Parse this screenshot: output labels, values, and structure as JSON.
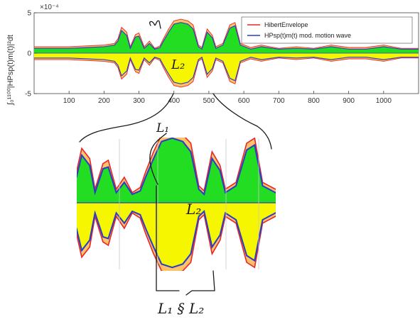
{
  "chart_data": {
    "type": "area",
    "title": "",
    "xlabel": "",
    "ylabel": "∫₀¹¹⁰⁰|HPsp(t)m(t)|²dt",
    "y_exponent": "×10⁻⁴",
    "xlim": [
      0,
      1100
    ],
    "ylim": [
      -5,
      5
    ],
    "x_ticks": [
      100,
      200,
      300,
      400,
      500,
      600,
      700,
      800,
      900,
      1000
    ],
    "y_ticks": [
      -5,
      0,
      5
    ],
    "grid": false,
    "legend": {
      "position": "top-right",
      "entries": [
        {
          "label": "HibertEnvelope",
          "color": "#e8262a"
        },
        {
          "label": "HPsp(t)m(t) mod. motion wave",
          "color": "#2a3fc6"
        }
      ]
    },
    "colors": {
      "upper_fill": "#22dd22",
      "lower_fill": "#f6f600",
      "envelope": "#e8262a",
      "wave": "#2a3fc6",
      "halo": "#ff9900"
    },
    "x": [
      0,
      100,
      200,
      230,
      240,
      250,
      265,
      275,
      290,
      300,
      315,
      330,
      345,
      360,
      370,
      385,
      400,
      420,
      440,
      455,
      470,
      480,
      495,
      510,
      520,
      540,
      560,
      575,
      590,
      620,
      650,
      700,
      750,
      800,
      850,
      900,
      950,
      1000,
      1050,
      1100
    ],
    "series": [
      {
        "name": "HibertEnvelope",
        "values": [
          0.8,
          0.8,
          1.0,
          1.2,
          1.8,
          3.2,
          2.6,
          0.8,
          2.3,
          2.5,
          0.8,
          1.5,
          0.6,
          0.9,
          1.8,
          3.0,
          4.0,
          4.2,
          4.0,
          3.5,
          1.0,
          0.7,
          3.0,
          2.2,
          0.8,
          1.2,
          3.5,
          3.8,
          1.2,
          0.7,
          1.0,
          0.6,
          0.8,
          0.6,
          1.0,
          0.7,
          0.7,
          1.0,
          0.6,
          0.6
        ]
      },
      {
        "name": "HPsp(t)m(t) mod. motion wave",
        "values": [
          0.6,
          0.6,
          0.8,
          1.0,
          1.5,
          2.8,
          2.2,
          0.6,
          2.0,
          2.1,
          0.6,
          1.2,
          0.5,
          0.7,
          1.5,
          2.6,
          3.6,
          3.8,
          3.6,
          3.0,
          0.8,
          0.5,
          2.6,
          1.9,
          0.6,
          1.0,
          3.1,
          3.4,
          1.0,
          0.5,
          0.8,
          0.5,
          0.6,
          0.5,
          0.8,
          0.5,
          0.5,
          0.8,
          0.5,
          0.5
        ]
      }
    ]
  },
  "annotations": {
    "top_l2": "L₂",
    "zoom_l1": "L₁",
    "zoom_l2": "L₂",
    "bottom_label": "L₁ § L₂"
  }
}
